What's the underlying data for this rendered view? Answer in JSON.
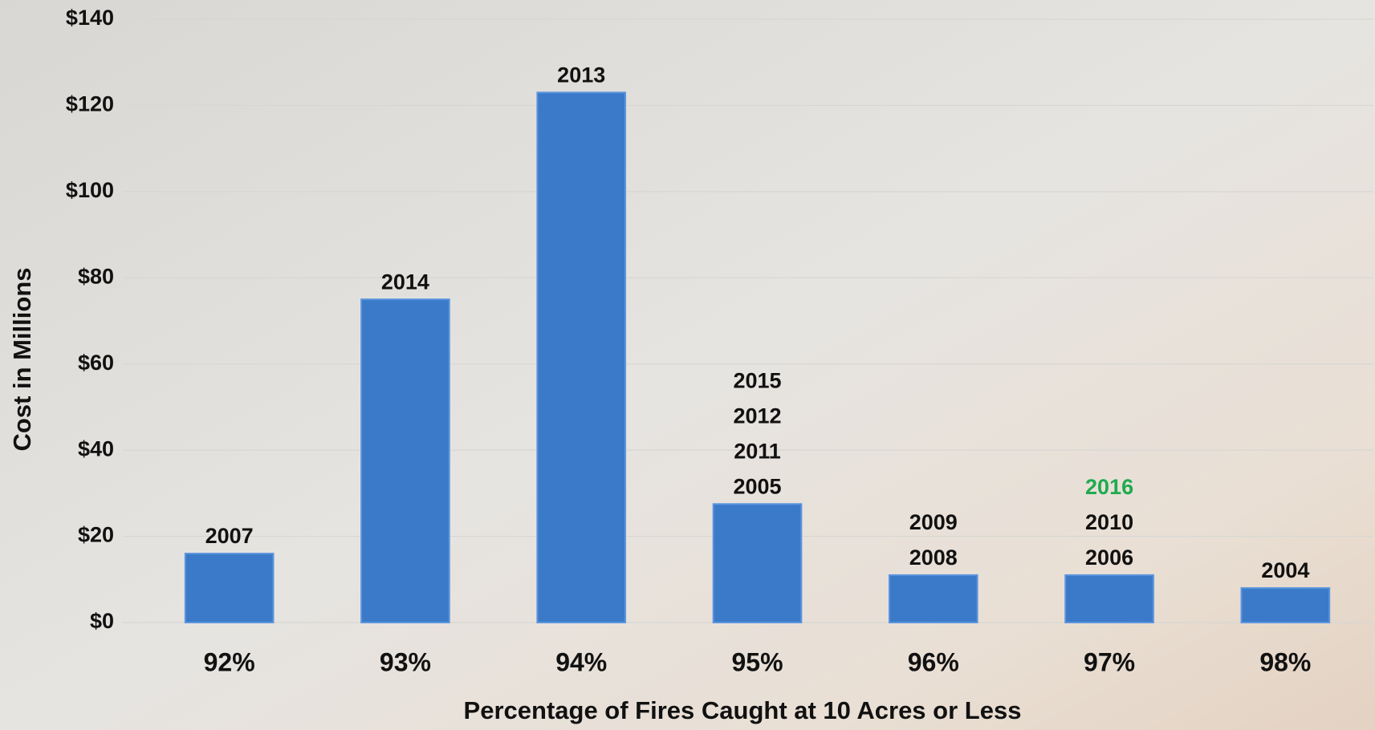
{
  "chart_data": {
    "type": "bar",
    "x_label": "Percentage of Fires Caught at 10 Acres or Less",
    "y_label": "Cost in Millions",
    "categories": [
      "92%",
      "93%",
      "94%",
      "95%",
      "96%",
      "97%",
      "98%"
    ],
    "values": [
      16,
      75,
      123,
      27.5,
      11,
      11,
      8
    ],
    "bar_labels": [
      [
        "2007"
      ],
      [
        "2014"
      ],
      [
        "2013"
      ],
      [
        "2015",
        "2012",
        "2011",
        "2005"
      ],
      [
        "2009",
        "2008"
      ],
      [
        {
          "text": "2016",
          "color": "#1faa4f"
        },
        "2010",
        "2006"
      ],
      [
        "2004"
      ]
    ],
    "color": "#3b79c9",
    "ylim": [
      0,
      140
    ],
    "yticks": [
      {
        "value": 0,
        "label": "$0"
      },
      {
        "value": 20,
        "label": "$20"
      },
      {
        "value": 40,
        "label": "$40"
      },
      {
        "value": 60,
        "label": "$60"
      },
      {
        "value": 80,
        "label": "$80"
      },
      {
        "value": 100,
        "label": "$100"
      },
      {
        "value": 120,
        "label": "$120"
      },
      {
        "value": 140,
        "label": "$140"
      }
    ],
    "grid": true
  }
}
